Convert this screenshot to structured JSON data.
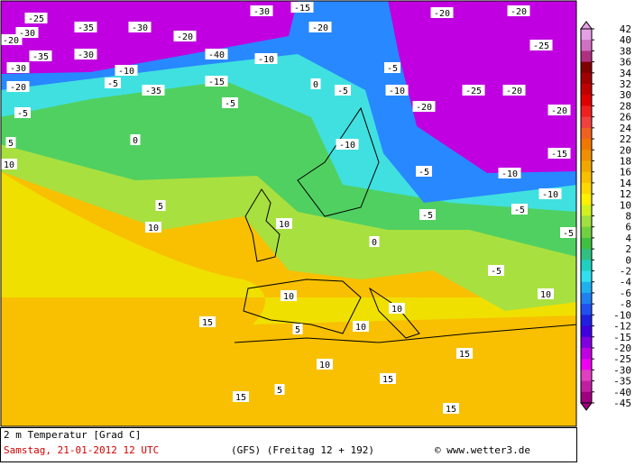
{
  "map": {
    "title": "2 m Temperatur [Grad C]",
    "date": "Samstag, 21-01-2012  12 UTC",
    "model": "(GFS)  (Freitag 12 + 192)",
    "credit": "© www.wetter3.de",
    "contour_labels": [
      -25,
      -30,
      -35,
      -30,
      -20,
      -40,
      -30,
      -15,
      -20,
      -20,
      -20,
      -25,
      -30,
      -35,
      -30,
      -10,
      -5,
      -35,
      -15,
      -10,
      0,
      -5,
      -5,
      -10,
      -20,
      -25,
      -20,
      -20,
      -20,
      -5,
      5,
      0,
      10,
      5,
      10,
      10,
      -10,
      -5,
      -10,
      0,
      -5,
      -5,
      -10,
      -5,
      10,
      10,
      15,
      5,
      10,
      10,
      15,
      15,
      15,
      5,
      10,
      15,
      -15,
      -5,
      -5,
      -20
    ]
  },
  "legend": {
    "labels": [
      42,
      40,
      38,
      36,
      34,
      32,
      30,
      28,
      26,
      24,
      22,
      20,
      18,
      16,
      14,
      12,
      10,
      8,
      6,
      4,
      2,
      0,
      -2,
      -4,
      -6,
      -8,
      -10,
      -12,
      -15,
      -20,
      -25,
      -30,
      -35,
      -40,
      -45
    ],
    "colors": [
      "#e6a0e6",
      "#d070c0",
      "#b03080",
      "#800000",
      "#a00000",
      "#c00000",
      "#e00000",
      "#f02020",
      "#f04040",
      "#f06020",
      "#f07800",
      "#f09000",
      "#f0a800",
      "#f8c000",
      "#ffd800",
      "#fff000",
      "#d0f020",
      "#a0e040",
      "#70d040",
      "#40c040",
      "#30c080",
      "#20d0c0",
      "#30e0f0",
      "#20b0f0",
      "#2080f0",
      "#2050f0",
      "#2020e0",
      "#4000e0",
      "#8000e0",
      "#c000e0",
      "#f000f0",
      "#e040c0",
      "#c020a0",
      "#a00080"
    ]
  }
}
